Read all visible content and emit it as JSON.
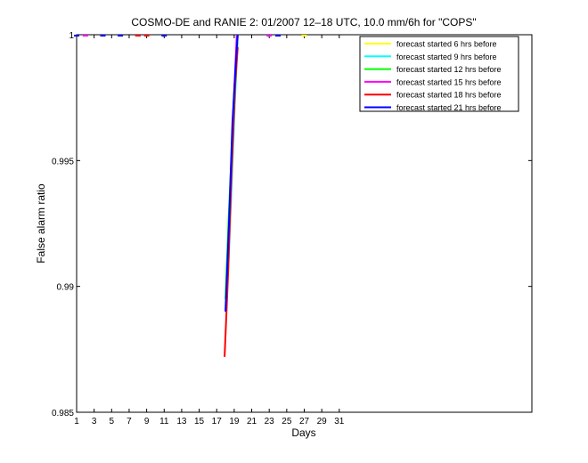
{
  "chart_data": {
    "type": "line",
    "title": "COSMO-DE and RANIE 2: 01/2007 12–18 UTC, 10.0 mm/6h for \"COPS\"",
    "xlabel": "Days",
    "ylabel": "False alarm ratio",
    "xlim": [
      1,
      53
    ],
    "ylim": [
      0.985,
      1
    ],
    "x_ticks": [
      1,
      3,
      5,
      7,
      9,
      11,
      13,
      15,
      17,
      19,
      21,
      23,
      25,
      27,
      29,
      31
    ],
    "x_tick_labels": [
      "1",
      "3",
      "5",
      "7",
      "9",
      "11",
      "13",
      "15",
      "17",
      "19",
      "21",
      "23",
      "25",
      "27",
      "29",
      "31"
    ],
    "y_ticks": [
      0.985,
      0.99,
      0.995,
      1
    ],
    "y_tick_labels": [
      "0.985",
      "0.99",
      "0.995",
      "1"
    ],
    "grid": false,
    "legend_position": "top-right",
    "series": [
      {
        "name": "forecast started 6 hrs before",
        "color": "#ffff00",
        "x": [
          1,
          2,
          27,
          18.2,
          18.6,
          19.0,
          19.4
        ],
        "y": [
          1,
          1,
          1,
          0.9905,
          0.9935,
          0.997,
          1
        ]
      },
      {
        "name": "forecast started 9 hrs before",
        "color": "#00ffff",
        "x": [
          18.3,
          18.7,
          19.1,
          19.4
        ],
        "y": [
          0.9905,
          0.994,
          0.9975,
          1
        ]
      },
      {
        "name": "forecast started 12 hrs before",
        "color": "#00ff00",
        "x": [
          18.0,
          18.4,
          18.8,
          19.2,
          19.4
        ],
        "y": [
          0.9895,
          0.993,
          0.996,
          0.9985,
          1
        ]
      },
      {
        "name": "forecast started 15 hrs before",
        "color": "#ff00ff",
        "x": [
          1,
          2,
          8,
          23,
          18.1,
          18.5,
          18.9,
          19.3
        ],
        "y": [
          1,
          1,
          1,
          1,
          0.989,
          0.993,
          0.997,
          1
        ]
      },
      {
        "name": "forecast started 18 hrs before",
        "color": "#ff0000",
        "x": [
          8,
          9,
          17.9,
          18.3,
          18.7,
          19.1,
          19.4
        ],
        "y": [
          1,
          1,
          0.9872,
          0.9905,
          0.9945,
          0.998,
          0.9995
        ]
      },
      {
        "name": "forecast started 21 hrs before",
        "color": "#0000ff",
        "x": [
          1,
          4,
          6,
          11,
          24,
          18.0,
          18.4,
          18.8,
          19.2,
          19.4
        ],
        "y": [
          1,
          1,
          1,
          1,
          1,
          0.989,
          0.9925,
          0.9965,
          0.999,
          1
        ]
      }
    ]
  }
}
